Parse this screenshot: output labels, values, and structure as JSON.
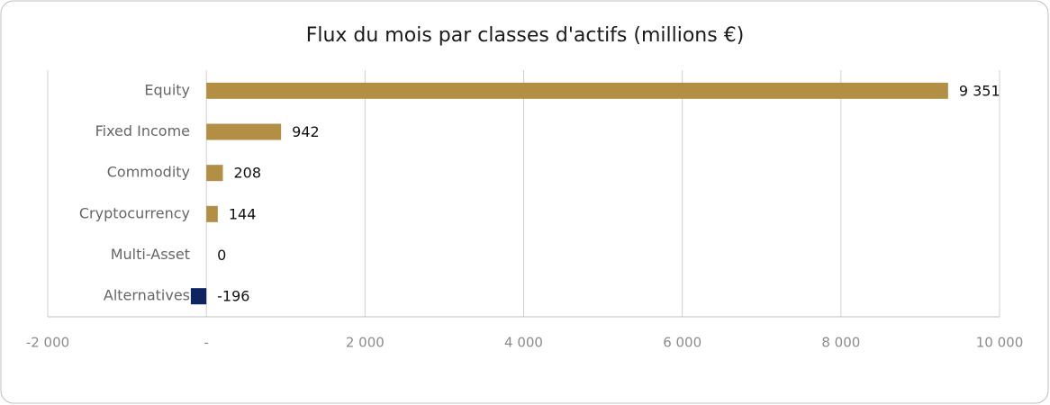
{
  "chart_data": {
    "type": "bar",
    "orientation": "horizontal",
    "title": "Flux du mois par classes d'actifs (millions €)",
    "categories": [
      "Equity",
      "Fixed Income",
      "Commodity",
      "Cryptocurrency",
      "Multi-Asset",
      "Alternatives"
    ],
    "values": [
      9351,
      942,
      208,
      144,
      0,
      -196
    ],
    "value_labels": [
      "9 351",
      "942",
      "208",
      "144",
      "0",
      "-196"
    ],
    "colors": [
      "#b38f45",
      "#b38f45",
      "#b38f45",
      "#b38f45",
      "#b38f45",
      "#0d2461"
    ],
    "xlim": [
      -2000,
      10000
    ],
    "xticks": [
      {
        "value": -2000,
        "label": "-2 000"
      },
      {
        "value": 0,
        "label": "-"
      },
      {
        "value": 2000,
        "label": "2 000"
      },
      {
        "value": 4000,
        "label": "4 000"
      },
      {
        "value": 6000,
        "label": "6 000"
      },
      {
        "value": 8000,
        "label": "8 000"
      },
      {
        "value": 10000,
        "label": "10 000"
      }
    ],
    "grid": true
  }
}
